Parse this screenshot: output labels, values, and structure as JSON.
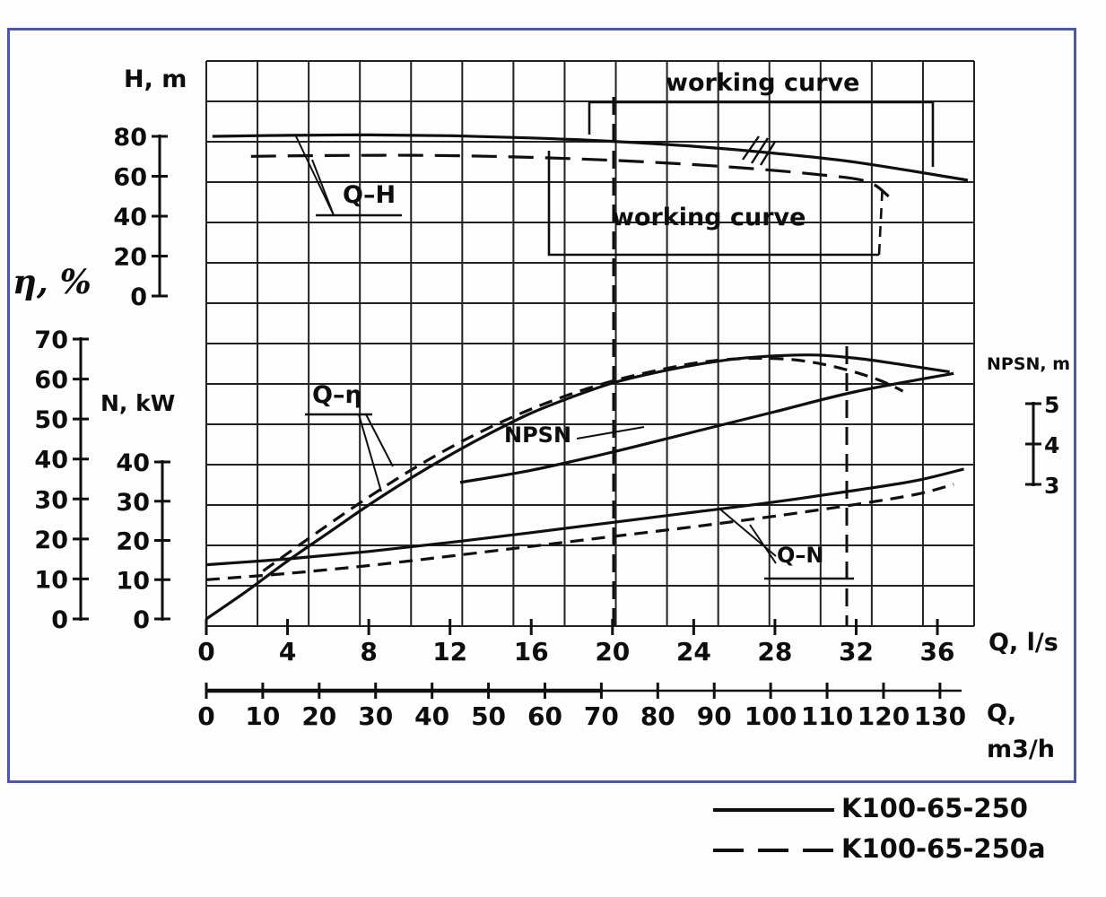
{
  "frame": {
    "border_color": "#4f55a7"
  },
  "chart_data": {
    "type": "line",
    "x_axis_primary": {
      "label": "Q, l/s",
      "ticks": [
        0,
        4,
        8,
        12,
        16,
        20,
        24,
        28,
        32,
        36
      ]
    },
    "x_axis_secondary": {
      "label_lines": [
        "Q,",
        "m3/h"
      ],
      "ticks": [
        0,
        10,
        20,
        30,
        40,
        50,
        60,
        70,
        80,
        90,
        100,
        110,
        120,
        130
      ]
    },
    "y_axes": {
      "H": {
        "label": "H, m",
        "ticks": [
          80,
          60,
          40,
          20,
          0
        ]
      },
      "eta": {
        "label": "η, %",
        "ticks": [
          70,
          60,
          50,
          40,
          30,
          20,
          10,
          0
        ]
      },
      "N": {
        "label": "N, kW",
        "ticks": [
          40,
          30,
          20,
          10,
          0
        ]
      },
      "npsn": {
        "label": "NPSN, m",
        "ticks": [
          5,
          4,
          3
        ]
      }
    },
    "labels": {
      "working_curve_top": "working curve",
      "working_curve_bottom": "working curve",
      "qh": "Q–H",
      "qeta": "Q–η",
      "npsn": "NPSN",
      "qn": "Q–N"
    },
    "series": [
      {
        "name": "Q-H K100-65-250",
        "axis": "H",
        "style": "solid",
        "points": [
          [
            0.3,
            80
          ],
          [
            4,
            80.5
          ],
          [
            8,
            80.7
          ],
          [
            12,
            80.3
          ],
          [
            16,
            79.2
          ],
          [
            20,
            77.5
          ],
          [
            24,
            75
          ],
          [
            28,
            71.5
          ],
          [
            32,
            67
          ],
          [
            37.5,
            58
          ]
        ]
      },
      {
        "name": "Q-H K100-65-250a",
        "axis": "H",
        "style": "dashed",
        "points": [
          [
            2.2,
            70
          ],
          [
            6,
            70.4
          ],
          [
            10,
            70.5
          ],
          [
            14,
            70
          ],
          [
            18,
            68.8
          ],
          [
            22,
            67
          ],
          [
            26,
            64.5
          ],
          [
            30,
            61
          ],
          [
            32.5,
            57.5
          ],
          [
            33.6,
            50
          ]
        ]
      },
      {
        "name": "Q-eta K100-65-250",
        "axis": "eta",
        "style": "solid",
        "points": [
          [
            0,
            0
          ],
          [
            2,
            7
          ],
          [
            4,
            14.5
          ],
          [
            6,
            21.5
          ],
          [
            8,
            28.5
          ],
          [
            10,
            35
          ],
          [
            12,
            41
          ],
          [
            14,
            46.5
          ],
          [
            16,
            51.5
          ],
          [
            18,
            55.5
          ],
          [
            20,
            59
          ],
          [
            22,
            61.5
          ],
          [
            24,
            63.5
          ],
          [
            26,
            65
          ],
          [
            28,
            65.8
          ],
          [
            30,
            66
          ],
          [
            32,
            65.2
          ],
          [
            34,
            63.8
          ],
          [
            36.6,
            61.8
          ]
        ]
      },
      {
        "name": "Q-eta K100-65-250a",
        "axis": "eta",
        "style": "dashed",
        "points": [
          [
            2.8,
            12
          ],
          [
            5,
            20
          ],
          [
            8,
            30.5
          ],
          [
            11,
            40
          ],
          [
            14,
            48
          ],
          [
            17,
            54.5
          ],
          [
            20,
            59.5
          ],
          [
            23,
            63
          ],
          [
            25,
            64.6
          ],
          [
            27,
            65.2
          ],
          [
            29,
            64.8
          ],
          [
            31,
            63
          ],
          [
            33,
            60
          ],
          [
            34.3,
            57
          ]
        ]
      },
      {
        "name": "NPSN",
        "axis": "npsn",
        "style": "solid",
        "points": [
          [
            12.5,
            3.05
          ],
          [
            16,
            3.35
          ],
          [
            20,
            3.8
          ],
          [
            24,
            4.3
          ],
          [
            28,
            4.8
          ],
          [
            32,
            5.3
          ],
          [
            36.8,
            5.75
          ]
        ]
      },
      {
        "name": "Q-N K100-65-250",
        "axis": "N",
        "style": "solid",
        "points": [
          [
            0,
            13.8
          ],
          [
            4,
            15.3
          ],
          [
            8,
            17.2
          ],
          [
            12,
            19.5
          ],
          [
            16,
            22
          ],
          [
            20,
            24.6
          ],
          [
            24,
            27.2
          ],
          [
            28,
            29.8
          ],
          [
            32,
            32.8
          ],
          [
            35,
            35.3
          ],
          [
            37.3,
            38.2
          ]
        ]
      },
      {
        "name": "Q-N K100-65-250a",
        "axis": "N",
        "style": "dashed",
        "points": [
          [
            0,
            10
          ],
          [
            4,
            11.6
          ],
          [
            8,
            13.6
          ],
          [
            12,
            16
          ],
          [
            16,
            18.5
          ],
          [
            20,
            21
          ],
          [
            24,
            23.5
          ],
          [
            28,
            26.2
          ],
          [
            32,
            29.2
          ],
          [
            35,
            31.8
          ],
          [
            36.8,
            34.3
          ]
        ]
      }
    ],
    "legend": [
      {
        "label": "K100-65-250",
        "style": "solid"
      },
      {
        "label": "K100-65-250a",
        "style": "dashed"
      }
    ]
  }
}
